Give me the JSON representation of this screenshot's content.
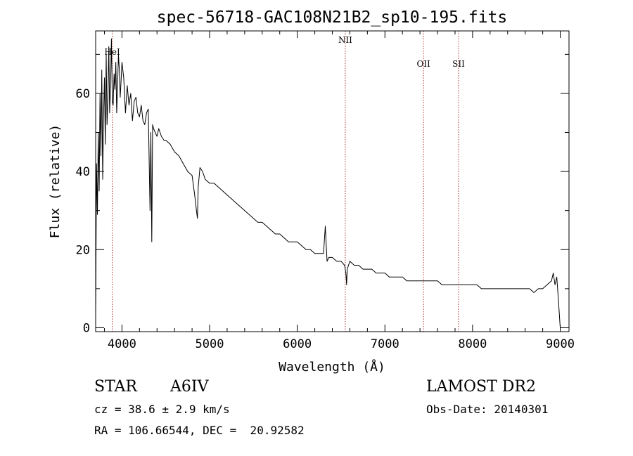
{
  "chart_data": {
    "type": "line",
    "title": "spec-56718-GAC108N21B2_sp10-195.fits",
    "xlabel": "Wavelength (Å)",
    "ylabel": "Flux (relative)",
    "xlim": [
      3700,
      9100
    ],
    "ylim": [
      -1,
      76
    ],
    "xticks": [
      4000,
      5000,
      6000,
      7000,
      8000,
      9000
    ],
    "yticks": [
      0,
      20,
      40,
      60
    ],
    "grid": false,
    "lines": [
      {
        "name": "HeI",
        "x": 3889
      },
      {
        "name": "NII",
        "x": 6548
      },
      {
        "name": "OII",
        "x": 7440
      },
      {
        "name": "SII",
        "x": 7840
      }
    ],
    "series": [
      {
        "name": "flux",
        "x": [
          3700,
          3710,
          3720,
          3730,
          3740,
          3750,
          3760,
          3770,
          3780,
          3790,
          3800,
          3810,
          3820,
          3830,
          3840,
          3850,
          3860,
          3870,
          3880,
          3890,
          3900,
          3910,
          3920,
          3930,
          3940,
          3950,
          3960,
          3970,
          3980,
          3990,
          4000,
          4020,
          4040,
          4060,
          4080,
          4100,
          4120,
          4140,
          4160,
          4180,
          4200,
          4220,
          4240,
          4260,
          4280,
          4300,
          4320,
          4330,
          4340,
          4350,
          4360,
          4380,
          4400,
          4420,
          4450,
          4480,
          4500,
          4550,
          4600,
          4650,
          4700,
          4750,
          4800,
          4830,
          4850,
          4861,
          4870,
          4890,
          4920,
          4950,
          5000,
          5050,
          5100,
          5150,
          5200,
          5250,
          5300,
          5350,
          5400,
          5450,
          5500,
          5550,
          5600,
          5650,
          5700,
          5750,
          5800,
          5850,
          5900,
          5950,
          6000,
          6050,
          6100,
          6150,
          6200,
          6250,
          6300,
          6320,
          6340,
          6360,
          6400,
          6450,
          6500,
          6540,
          6555,
          6563,
          6570,
          6600,
          6650,
          6700,
          6750,
          6800,
          6850,
          6900,
          6950,
          7000,
          7050,
          7100,
          7150,
          7200,
          7250,
          7300,
          7350,
          7400,
          7450,
          7500,
          7550,
          7600,
          7650,
          7700,
          7750,
          7800,
          7850,
          7900,
          7950,
          8000,
          8050,
          8100,
          8150,
          8200,
          8250,
          8300,
          8350,
          8400,
          8450,
          8500,
          8550,
          8600,
          8650,
          8700,
          8750,
          8800,
          8850,
          8900,
          8920,
          8940,
          8960,
          8980,
          9000
        ],
        "y": [
          2,
          42,
          29,
          50,
          35,
          60,
          44,
          66,
          38,
          54,
          64,
          47,
          70,
          52,
          59,
          72,
          55,
          62,
          74,
          58,
          57,
          65,
          61,
          68,
          55,
          62,
          70,
          66,
          59,
          63,
          68,
          64,
          55,
          62,
          57,
          60,
          53,
          58,
          59,
          55,
          54,
          57,
          53,
          52,
          55,
          56,
          30,
          50,
          22,
          52,
          51,
          50,
          49,
          51,
          49,
          48,
          48,
          47,
          45,
          44,
          42,
          40,
          39,
          34,
          30,
          28,
          36,
          41,
          40,
          38,
          37,
          37,
          36,
          35,
          34,
          33,
          32,
          31,
          30,
          29,
          28,
          27,
          27,
          26,
          25,
          24,
          24,
          23,
          22,
          22,
          22,
          21,
          20,
          20,
          19,
          19,
          19,
          26,
          17,
          18,
          18,
          17,
          17,
          16,
          14,
          11,
          15,
          17,
          16,
          16,
          15,
          15,
          15,
          14,
          14,
          14,
          13,
          13,
          13,
          13,
          12,
          12,
          12,
          12,
          12,
          12,
          12,
          12,
          11,
          11,
          11,
          11,
          11,
          11,
          11,
          11,
          11,
          10,
          10,
          10,
          10,
          10,
          10,
          10,
          10,
          10,
          10,
          10,
          10,
          9,
          10,
          10,
          11,
          12,
          14,
          11,
          13,
          7,
          0
        ]
      }
    ]
  },
  "info": {
    "obj_class": "STAR",
    "obj_subclass": "A6IV",
    "survey": "LAMOST DR2",
    "cz": "cz = 38.6 ± 2.9 km/s",
    "obs_date": "Obs-Date: 20140301",
    "radec": "RA = 106.66544, DEC =  20.92582"
  }
}
